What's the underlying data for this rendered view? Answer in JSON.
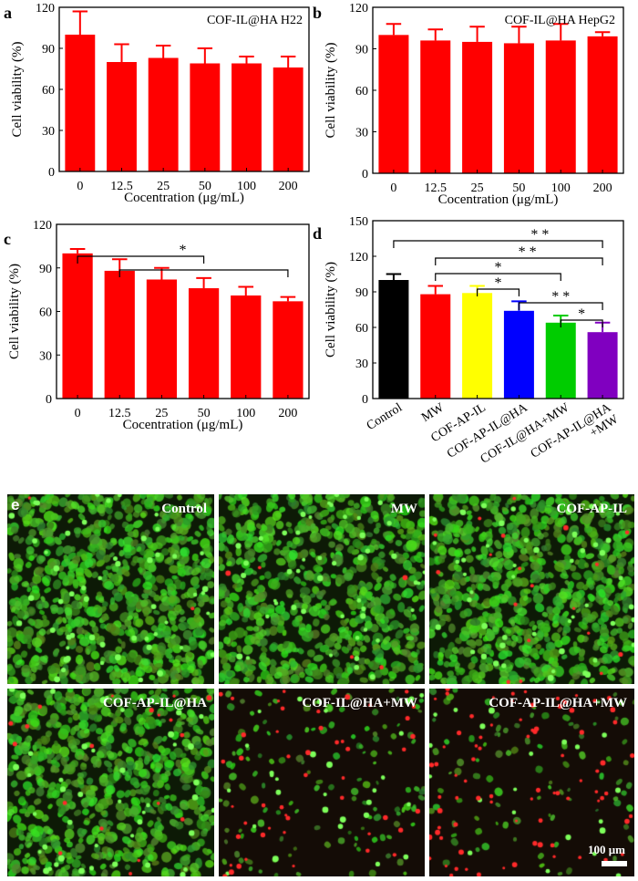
{
  "chart_data": [
    {
      "panel": "a",
      "type": "bar",
      "title": "COF-IL@HA H22",
      "categories": [
        "0",
        "12.5",
        "25",
        "50",
        "100",
        "200"
      ],
      "values": [
        100,
        80,
        83,
        79,
        79,
        76
      ],
      "errors": [
        17,
        13,
        9,
        11,
        5,
        8
      ],
      "xlabel": "Cocentration (μg/mL)",
      "ylabel": "Cell viability (%)",
      "ylim": [
        0,
        120
      ],
      "yticks": [
        0,
        30,
        60,
        90,
        120
      ],
      "bar_color": "#ff0000"
    },
    {
      "panel": "b",
      "type": "bar",
      "title": "COF-IL@HA HepG2",
      "categories": [
        "0",
        "12.5",
        "25",
        "50",
        "100",
        "200"
      ],
      "values": [
        100,
        96,
        95,
        94,
        96,
        99
      ],
      "errors": [
        8,
        8,
        11,
        12,
        12,
        3
      ],
      "xlabel": "Cocentration (μg/mL)",
      "ylabel": "Cell viability (%)",
      "ylim": [
        0,
        120
      ],
      "yticks": [
        0,
        30,
        60,
        90,
        120
      ],
      "bar_color": "#ff0000"
    },
    {
      "panel": "c",
      "type": "bar",
      "title": "",
      "categories": [
        "0",
        "12.5",
        "25",
        "50",
        "100",
        "200"
      ],
      "values": [
        100,
        88,
        82,
        76,
        71,
        67
      ],
      "errors": [
        3,
        8,
        8,
        7,
        6,
        3
      ],
      "xlabel": "Cocentration (μg/mL)",
      "ylabel": "Cell viability (%)",
      "ylim": [
        0,
        120
      ],
      "yticks": [
        0,
        30,
        60,
        90,
        120
      ],
      "bar_color": "#ff0000",
      "significance": [
        {
          "from": 0,
          "to": 3,
          "label": "*"
        },
        {
          "from": 1,
          "to": 5,
          "label": ""
        }
      ]
    },
    {
      "panel": "d",
      "type": "bar",
      "title": "",
      "categories": [
        "Control",
        "MW",
        "COF-AP-IL",
        "COF-AP-IL@HA",
        "COF-IL@HA+MW",
        "COF-AP-IL@HA +MW"
      ],
      "values": [
        100,
        88,
        89,
        74,
        64,
        56
      ],
      "errors": [
        5,
        7,
        6,
        8,
        6,
        8
      ],
      "colors": [
        "#000000",
        "#ff0000",
        "#ffff00",
        "#0000ff",
        "#00cc00",
        "#8000c0"
      ],
      "xlabel": "",
      "ylabel": "Cell viability (%)",
      "ylim": [
        0,
        150
      ],
      "yticks": [
        0,
        30,
        60,
        90,
        120,
        150
      ],
      "significance": [
        {
          "from": 0,
          "to": 5,
          "label": "* *"
        },
        {
          "from": 1,
          "to": 5,
          "label": "* *"
        },
        {
          "from": 1,
          "to": 4,
          "label": "*"
        },
        {
          "from": 2,
          "to": 3,
          "label": "*"
        },
        {
          "from": 3,
          "to": 5,
          "label": "* *"
        },
        {
          "from": 4,
          "to": 5,
          "label": "*"
        }
      ]
    }
  ],
  "panel_letters": {
    "a": "a",
    "b": "b",
    "c": "c",
    "d": "d",
    "e": "e"
  },
  "micrographs": [
    {
      "label": "Control",
      "green_density": 0.9,
      "red_density": 0.01,
      "style": "dense"
    },
    {
      "label": "MW",
      "green_density": 0.8,
      "red_density": 0.03,
      "style": "dense"
    },
    {
      "label": "COF-AP-IL",
      "green_density": 0.85,
      "red_density": 0.12,
      "style": "dense"
    },
    {
      "label": "COF-AP-IL@HA",
      "green_density": 0.75,
      "red_density": 0.12,
      "style": "dense"
    },
    {
      "label": "COF-IL@HA+MW",
      "green_density": 0.5,
      "red_density": 0.3,
      "style": "sparse"
    },
    {
      "label": "COF-AP-IL@HA+MW",
      "green_density": 0.35,
      "red_density": 0.5,
      "style": "sparse"
    }
  ],
  "scale_bar": {
    "label": "100 μm"
  }
}
